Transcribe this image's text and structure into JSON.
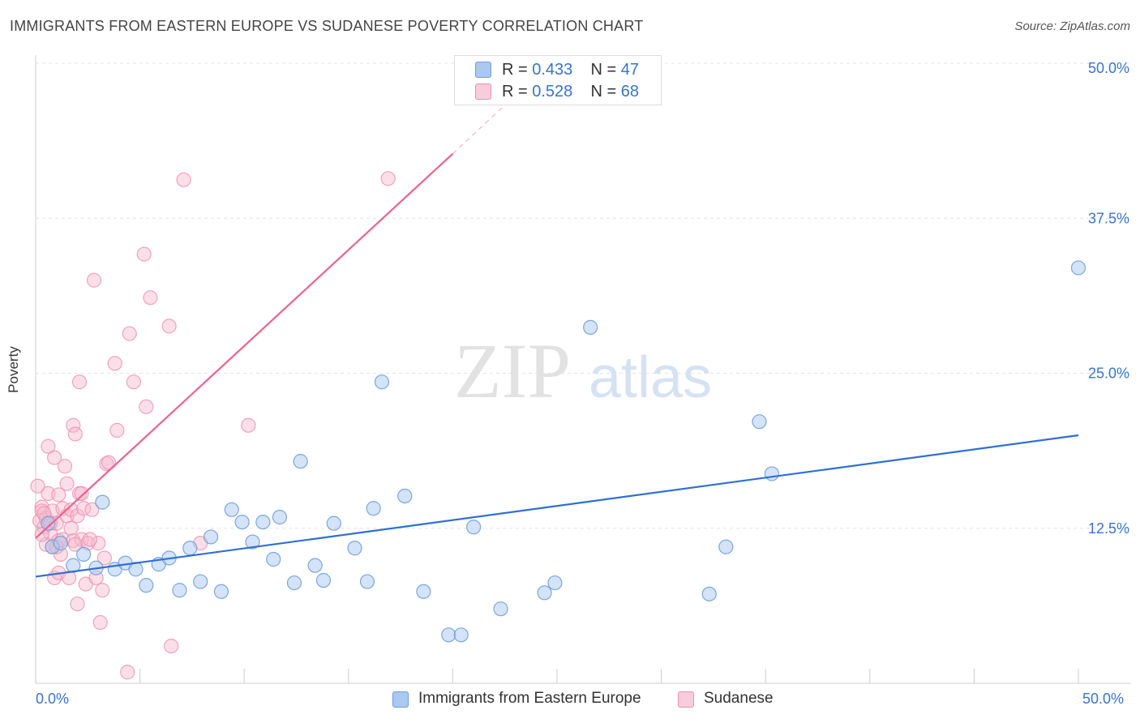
{
  "title": "IMMIGRANTS FROM EASTERN EUROPE VS SUDANESE POVERTY CORRELATION CHART",
  "source": "Source: ZipAtlas.com",
  "watermark": {
    "zip": "ZIP",
    "atlas": "atlas"
  },
  "colors": {
    "blue_fill": "#aac8f0",
    "blue_stroke": "#6f9fd8",
    "blue_line": "#2f6fd0",
    "pink_fill": "#f7b8cc",
    "pink_stroke": "#ee8fae",
    "pink_line": "#e8648f",
    "axis_label": "#3a73c9",
    "grid": "#e3e3e3"
  },
  "legend_top": [
    {
      "r_label": "R = ",
      "r_value": "0.433",
      "n_label": "N = ",
      "n_value": "47",
      "color": "blue"
    },
    {
      "r_label": "R = ",
      "r_value": "0.528",
      "n_label": "N = ",
      "n_value": "68",
      "color": "pink"
    }
  ],
  "legend_bottom": [
    {
      "label": "Immigrants from Eastern Europe",
      "color": "blue"
    },
    {
      "label": "Sudanese",
      "color": "pink"
    }
  ],
  "chart_data": {
    "type": "scatter",
    "title": "IMMIGRANTS FROM EASTERN EUROPE VS SUDANESE POVERTY CORRELATION CHART",
    "xlabel": "",
    "ylabel": "Poverty",
    "xlim": [
      0,
      50
    ],
    "ylim": [
      0,
      50
    ],
    "x_tick_labels": [
      "0.0%",
      "50.0%"
    ],
    "y_ticks": [
      12.5,
      25.0,
      37.5,
      50.0
    ],
    "y_tick_labels": [
      "12.5%",
      "25.0%",
      "37.5%",
      "50.0%"
    ],
    "grid": true,
    "legend_position": "top-center",
    "series": [
      {
        "name": "Immigrants from Eastern Europe",
        "color": "blue",
        "trend": {
          "x": [
            0,
            50
          ],
          "y": [
            8.6,
            20.0
          ]
        },
        "points": [
          [
            0.6,
            12.9
          ],
          [
            0.8,
            11.0
          ],
          [
            1.2,
            11.3
          ],
          [
            1.8,
            9.5
          ],
          [
            2.3,
            10.4
          ],
          [
            2.9,
            9.3
          ],
          [
            3.2,
            14.6
          ],
          [
            3.8,
            9.2
          ],
          [
            4.3,
            9.7
          ],
          [
            4.8,
            9.2
          ],
          [
            5.3,
            7.9
          ],
          [
            5.9,
            9.6
          ],
          [
            6.4,
            10.1
          ],
          [
            6.9,
            7.5
          ],
          [
            7.4,
            10.9
          ],
          [
            7.9,
            8.2
          ],
          [
            8.4,
            11.8
          ],
          [
            8.9,
            7.4
          ],
          [
            9.4,
            14.0
          ],
          [
            9.9,
            13.0
          ],
          [
            10.4,
            11.4
          ],
          [
            10.9,
            13.0
          ],
          [
            11.4,
            10.0
          ],
          [
            11.7,
            13.4
          ],
          [
            12.4,
            8.1
          ],
          [
            12.7,
            17.9
          ],
          [
            13.4,
            9.5
          ],
          [
            13.8,
            8.3
          ],
          [
            14.3,
            12.9
          ],
          [
            15.3,
            10.9
          ],
          [
            15.9,
            8.2
          ],
          [
            16.2,
            14.1
          ],
          [
            16.6,
            24.3
          ],
          [
            17.7,
            15.1
          ],
          [
            18.6,
            7.4
          ],
          [
            19.8,
            3.9
          ],
          [
            20.4,
            3.9
          ],
          [
            21.0,
            12.6
          ],
          [
            22.3,
            6.0
          ],
          [
            24.4,
            7.3
          ],
          [
            24.9,
            8.1
          ],
          [
            26.6,
            28.7
          ],
          [
            32.3,
            7.2
          ],
          [
            33.1,
            11.0
          ],
          [
            34.7,
            21.1
          ],
          [
            35.3,
            16.9
          ],
          [
            50.0,
            33.5
          ]
        ]
      },
      {
        "name": "Sudanese",
        "color": "pink",
        "trend": {
          "x": [
            0,
            20
          ],
          "y": [
            11.7,
            42.7
          ]
        },
        "trend_dashed": {
          "x": [
            20,
            23.5
          ],
          "y": [
            42.7,
            48.2
          ]
        },
        "points": [
          [
            0.1,
            15.9
          ],
          [
            0.2,
            13.1
          ],
          [
            0.3,
            14.2
          ],
          [
            0.3,
            13.9
          ],
          [
            0.4,
            12.6
          ],
          [
            0.5,
            11.2
          ],
          [
            0.5,
            13.3
          ],
          [
            0.6,
            15.3
          ],
          [
            0.6,
            19.1
          ],
          [
            0.7,
            12.1
          ],
          [
            0.8,
            13.9
          ],
          [
            0.8,
            11.0
          ],
          [
            0.9,
            8.5
          ],
          [
            0.9,
            18.2
          ],
          [
            1.0,
            12.9
          ],
          [
            1.1,
            15.2
          ],
          [
            1.1,
            11.5
          ],
          [
            1.1,
            8.9
          ],
          [
            1.2,
            10.4
          ],
          [
            1.3,
            14.1
          ],
          [
            1.3,
            11.6
          ],
          [
            1.4,
            17.5
          ],
          [
            1.5,
            13.5
          ],
          [
            1.6,
            8.5
          ],
          [
            1.7,
            12.5
          ],
          [
            1.7,
            14.0
          ],
          [
            1.8,
            11.5
          ],
          [
            1.8,
            20.8
          ],
          [
            1.9,
            20.1
          ],
          [
            2.0,
            13.5
          ],
          [
            2.0,
            6.4
          ],
          [
            2.1,
            15.3
          ],
          [
            2.1,
            24.3
          ],
          [
            2.2,
            11.6
          ],
          [
            2.3,
            14.1
          ],
          [
            2.4,
            8.0
          ],
          [
            2.5,
            11.3
          ],
          [
            2.7,
            14.0
          ],
          [
            2.8,
            32.5
          ],
          [
            2.9,
            8.5
          ],
          [
            3.0,
            11.3
          ],
          [
            3.1,
            4.9
          ],
          [
            3.2,
            7.5
          ],
          [
            3.3,
            10.1
          ],
          [
            3.4,
            17.7
          ],
          [
            3.5,
            17.8
          ],
          [
            3.8,
            25.8
          ],
          [
            3.9,
            20.4
          ],
          [
            4.4,
            0.9
          ],
          [
            4.5,
            28.2
          ],
          [
            4.7,
            24.3
          ],
          [
            5.2,
            34.6
          ],
          [
            5.3,
            22.3
          ],
          [
            5.5,
            31.1
          ],
          [
            6.4,
            28.8
          ],
          [
            6.5,
            3.0
          ],
          [
            7.1,
            40.6
          ],
          [
            7.9,
            11.3
          ],
          [
            10.2,
            20.8
          ],
          [
            16.9,
            40.7
          ],
          [
            0.4,
            13.7
          ],
          [
            0.7,
            12.9
          ],
          [
            1.0,
            11.0
          ],
          [
            1.5,
            16.1
          ],
          [
            1.9,
            11.2
          ],
          [
            2.2,
            15.3
          ],
          [
            2.6,
            11.6
          ],
          [
            0.3,
            12.0
          ]
        ]
      }
    ]
  }
}
